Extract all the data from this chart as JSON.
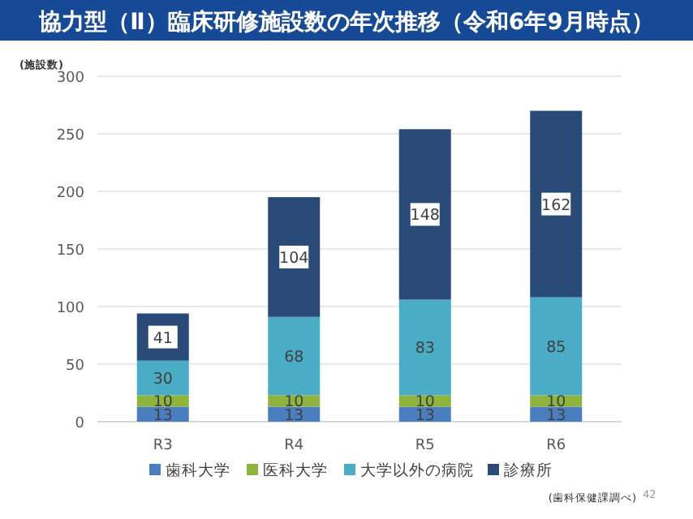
{
  "chart_data": {
    "type": "bar",
    "stacked": true,
    "title": "協力型（Ⅱ）臨床研修施設数の年次推移（令和6年9月時点）",
    "ylabel": "(施設数)",
    "categories": [
      "R3",
      "R4",
      "R5",
      "R6"
    ],
    "series": [
      {
        "name": "歯科大学",
        "color": "#4a7ebf",
        "values": [
          13,
          13,
          13,
          13
        ]
      },
      {
        "name": "医科大学",
        "color": "#8fb43e",
        "values": [
          10,
          10,
          10,
          10
        ]
      },
      {
        "name": "大学以外の病院",
        "color": "#4bacc6",
        "values": [
          30,
          68,
          83,
          85
        ]
      },
      {
        "name": "診療所",
        "color": "#2a4a78",
        "values": [
          41,
          104,
          148,
          162
        ]
      }
    ],
    "ylim": [
      0,
      300
    ],
    "yticks": [
      0,
      50,
      100,
      150,
      200,
      250,
      300
    ],
    "grid": "y",
    "legend": "bottom",
    "data_labels": true,
    "annotations": [
      "(歯科保健課調べ)",
      "42"
    ]
  }
}
